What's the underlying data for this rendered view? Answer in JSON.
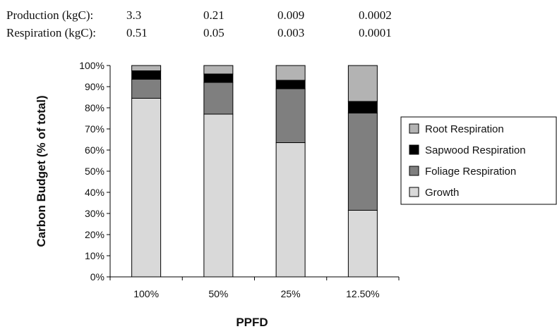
{
  "header_table": {
    "rows": [
      {
        "label": "Production (kgC):",
        "values": [
          "3.3",
          "0.21",
          "0.009",
          "0.0002"
        ]
      },
      {
        "label": "Respiration (kgC):",
        "values": [
          "0.51",
          "0.05",
          "0.003",
          "0.0001"
        ]
      }
    ]
  },
  "chart_data": {
    "type": "bar",
    "stacked": true,
    "title": "",
    "xlabel": "PPFD",
    "ylabel": "Carbon Budget (% of total)",
    "categories": [
      "100%",
      "50%",
      "25%",
      "12.50%"
    ],
    "ylim": [
      0,
      100
    ],
    "yticks": [
      "0%",
      "10%",
      "20%",
      "30%",
      "40%",
      "50%",
      "60%",
      "70%",
      "80%",
      "90%",
      "100%"
    ],
    "grid": false,
    "legend_position": "right",
    "series": [
      {
        "name": "Growth",
        "color": "#d9d9d9",
        "values": [
          84.5,
          77,
          63.5,
          31.5
        ]
      },
      {
        "name": "Foliage Respiration",
        "color": "#7f7f7f",
        "values": [
          9,
          15,
          25.5,
          46
        ]
      },
      {
        "name": "Sapwood Respiration",
        "color": "#000000",
        "values": [
          4,
          4,
          4,
          5.5
        ]
      },
      {
        "name": "Root Respiration",
        "color": "#b3b3b3",
        "values": [
          2.5,
          4,
          7,
          17
        ]
      }
    ],
    "legend_order": [
      "Root Respiration",
      "Sapwood Respiration",
      "Foliage Respiration",
      "Growth"
    ]
  }
}
